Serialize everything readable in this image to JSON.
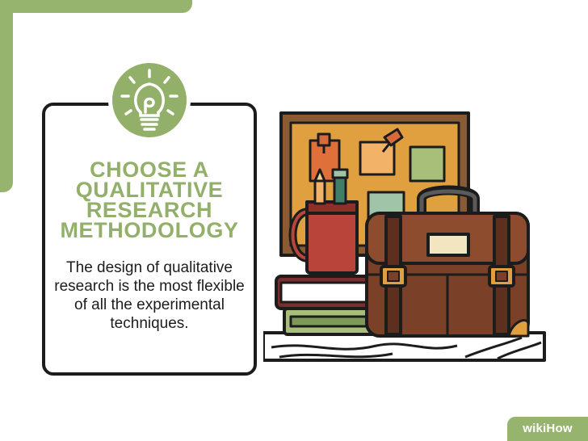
{
  "heading_lines": [
    "Choose a",
    "Qualitative",
    "Research",
    "Methodology"
  ],
  "description": "The design of qualitative research is the most flexible of all the experimental techniques.",
  "watermark": "wikiHow",
  "colors": {
    "accent_green": "#93b06a",
    "board": "#e0a040",
    "mug": "#b8443a",
    "suitcase": "#7a4028",
    "outline": "#1c1c1c"
  },
  "icons": [
    "lightbulb-icon"
  ]
}
